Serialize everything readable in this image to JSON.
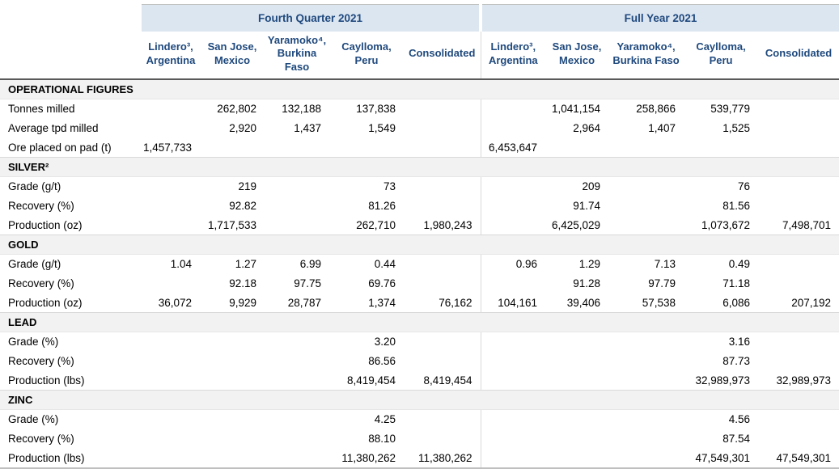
{
  "colors": {
    "band_background": "#dce6f1",
    "header_text": "#1f497d",
    "section_background": "#f2f2f2",
    "body_text": "#000000",
    "header_underline": "#595959",
    "grid_line": "#d9d9d9"
  },
  "table": {
    "groups": [
      {
        "label": "Fourth Quarter 2021"
      },
      {
        "label": "Full Year 2021"
      }
    ],
    "col_headers": [
      "Lindero³, Argentina",
      "San Jose, Mexico",
      "Yaramoko⁴, Burkina Faso",
      "Caylloma, Peru",
      "Consolidated"
    ],
    "sections": [
      {
        "title": "OPERATIONAL FIGURES",
        "rows": [
          {
            "label": "Tonnes milled",
            "q4": [
              "",
              "262,802",
              "132,188",
              "137,838",
              ""
            ],
            "fy": [
              "",
              "1,041,154",
              "258,866",
              "539,779",
              ""
            ]
          },
          {
            "label": "Average tpd milled",
            "q4": [
              "",
              "2,920",
              "1,437",
              "1,549",
              ""
            ],
            "fy": [
              "",
              "2,964",
              "1,407",
              "1,525",
              ""
            ]
          },
          {
            "label": "Ore placed on pad (t)",
            "q4": [
              "1,457,733",
              "",
              "",
              "",
              ""
            ],
            "fy": [
              "6,453,647",
              "",
              "",
              "",
              ""
            ]
          }
        ]
      },
      {
        "title": "SILVER²",
        "rows": [
          {
            "label": "Grade (g/t)",
            "q4": [
              "",
              "219",
              "",
              "73",
              ""
            ],
            "fy": [
              "",
              "209",
              "",
              "76",
              ""
            ]
          },
          {
            "label": "Recovery (%)",
            "q4": [
              "",
              "92.82",
              "",
              "81.26",
              ""
            ],
            "fy": [
              "",
              "91.74",
              "",
              "81.56",
              ""
            ]
          },
          {
            "label": "Production (oz)",
            "q4": [
              "",
              "1,717,533",
              "",
              "262,710",
              "1,980,243"
            ],
            "fy": [
              "",
              "6,425,029",
              "",
              "1,073,672",
              "7,498,701"
            ]
          }
        ]
      },
      {
        "title": "GOLD",
        "rows": [
          {
            "label": "Grade (g/t)",
            "q4": [
              "1.04",
              "1.27",
              "6.99",
              "0.44",
              ""
            ],
            "fy": [
              "0.96",
              "1.29",
              "7.13",
              "0.49",
              ""
            ]
          },
          {
            "label": "Recovery (%)",
            "q4": [
              "",
              "92.18",
              "97.75",
              "69.76",
              ""
            ],
            "fy": [
              "",
              "91.28",
              "97.79",
              "71.18",
              ""
            ]
          },
          {
            "label": "Production (oz)",
            "q4": [
              "36,072",
              "9,929",
              "28,787",
              "1,374",
              "76,162"
            ],
            "fy": [
              "104,161",
              "39,406",
              "57,538",
              "6,086",
              "207,192"
            ]
          }
        ]
      },
      {
        "title": "LEAD",
        "rows": [
          {
            "label": "Grade (%)",
            "q4": [
              "",
              "",
              "",
              "3.20",
              ""
            ],
            "fy": [
              "",
              "",
              "",
              "3.16",
              ""
            ]
          },
          {
            "label": "Recovery (%)",
            "q4": [
              "",
              "",
              "",
              "86.56",
              ""
            ],
            "fy": [
              "",
              "",
              "",
              "87.73",
              ""
            ]
          },
          {
            "label": "Production (lbs)",
            "q4": [
              "",
              "",
              "",
              "8,419,454",
              "8,419,454"
            ],
            "fy": [
              "",
              "",
              "",
              "32,989,973",
              "32,989,973"
            ]
          }
        ]
      },
      {
        "title": "ZINC",
        "rows": [
          {
            "label": "Grade (%)",
            "q4": [
              "",
              "",
              "",
              "4.25",
              ""
            ],
            "fy": [
              "",
              "",
              "",
              "4.56",
              ""
            ]
          },
          {
            "label": "Recovery (%)",
            "q4": [
              "",
              "",
              "",
              "88.10",
              ""
            ],
            "fy": [
              "",
              "",
              "",
              "87.54",
              ""
            ]
          },
          {
            "label": "Production (lbs)",
            "q4": [
              "",
              "",
              "",
              "11,380,262",
              "11,380,262"
            ],
            "fy": [
              "",
              "",
              "",
              "47,549,301",
              "47,549,301"
            ]
          }
        ]
      }
    ]
  }
}
